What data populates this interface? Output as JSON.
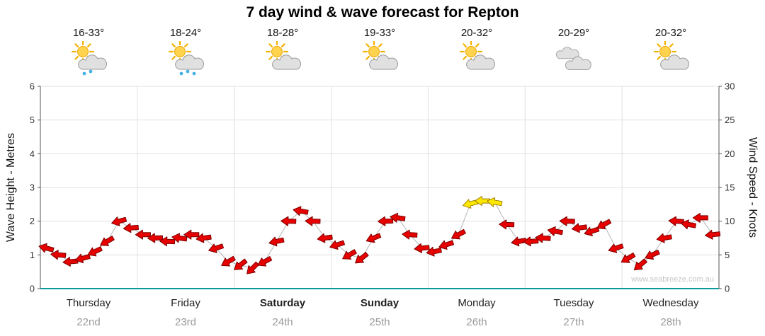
{
  "title": "7 day wind & wave forecast for Repton",
  "watermark": "www.seabreeze.com.au",
  "days": [
    {
      "name": "Thursday",
      "date": "22nd",
      "temp": "16-33°",
      "icon": "sun-cloud-rain",
      "rain": 2
    },
    {
      "name": "Friday",
      "date": "23rd",
      "temp": "18-24°",
      "icon": "sun-cloud-rain",
      "rain": 3
    },
    {
      "name": "Saturday",
      "date": "24th",
      "temp": "18-28°",
      "icon": "sun-cloud",
      "rain": 0
    },
    {
      "name": "Sunday",
      "date": "25th",
      "temp": "19-33°",
      "icon": "sun-cloud",
      "rain": 0
    },
    {
      "name": "Monday",
      "date": "26th",
      "temp": "20-32°",
      "icon": "sun-cloud",
      "rain": 0
    },
    {
      "name": "Tuesday",
      "date": "27th",
      "temp": "20-29°",
      "icon": "cloud",
      "rain": 0
    },
    {
      "name": "Wednesday",
      "date": "28th",
      "temp": "20-32°",
      "icon": "sun-cloud",
      "rain": 0
    }
  ],
  "colors": {
    "baseline_teal": "#0a9a9a",
    "grid": "#e0e0e0",
    "axis": "#555555",
    "arrow_red": "#e60000",
    "arrow_yellow": "#ffe800",
    "arrow_outline": "#7d0000",
    "connector_gray": "#b3b3b3"
  },
  "chart_data": {
    "type": "line",
    "subtype": "wind-arrow-forecast",
    "title": "7 day wind & wave forecast for Repton",
    "categories": [
      "Thursday 22nd",
      "Friday 23rd",
      "Saturday 24th",
      "Sunday 25th",
      "Monday 26th",
      "Tuesday 27th",
      "Wednesday 28th"
    ],
    "points_per_day": 8,
    "y_left": {
      "label": "Wave Height - Metres",
      "range": [
        0,
        6
      ],
      "ticks": [
        0,
        1,
        2,
        3,
        4,
        5,
        6
      ]
    },
    "y_right": {
      "label": "Wind Speed - Knots",
      "range": [
        0,
        30
      ],
      "ticks": [
        0,
        5,
        10,
        15,
        20,
        25,
        30
      ]
    },
    "grid": true,
    "legend": "none",
    "series": [
      {
        "name": "Wind speed",
        "units": "knots",
        "axis": "right",
        "values": [
          6,
          5,
          4,
          4.5,
          5.5,
          7,
          10,
          9,
          8,
          7.5,
          7,
          7.5,
          8,
          7.5,
          6,
          4,
          3.5,
          3,
          4,
          7,
          10,
          11.5,
          10,
          7.5,
          6.5,
          5,
          4.5,
          7.5,
          10,
          10.5,
          8,
          6,
          5.5,
          6.5,
          8,
          12.6,
          13,
          12.8,
          9.5,
          7,
          7,
          7.5,
          8.5,
          10,
          9,
          8.5,
          9.5,
          6,
          4.5,
          3.5,
          5,
          7.5,
          10,
          9.5,
          10.5,
          8
        ],
        "direction_deg": [
          195,
          185,
          175,
          165,
          155,
          150,
          165,
          175,
          180,
          178,
          182,
          188,
          180,
          172,
          162,
          150,
          142,
          135,
          152,
          168,
          182,
          190,
          182,
          172,
          162,
          150,
          142,
          158,
          178,
          188,
          184,
          174,
          170,
          162,
          152,
          166,
          180,
          190,
          182,
          170,
          176,
          184,
          190,
          182,
          172,
          162,
          152,
          162,
          150,
          140,
          156,
          170,
          184,
          190,
          180,
          174
        ]
      }
    ],
    "style": {
      "arrow_color": "#e60000",
      "strong_arrow_color": "#ffe800",
      "strong_threshold_knots": 12.5,
      "connector_color": "#b3b3b3"
    }
  }
}
